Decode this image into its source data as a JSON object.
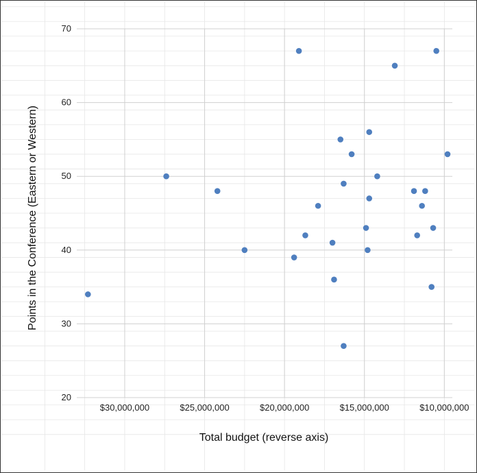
{
  "chart_data": {
    "type": "scatter",
    "title": "",
    "xlabel": "Total budget (reverse axis)",
    "ylabel": "Points in the Conference (Eastern or Western)",
    "x_reversed": true,
    "xlim": [
      9500000,
      33000000
    ],
    "ylim": [
      20,
      70
    ],
    "x_ticks": [
      30000000,
      25000000,
      20000000,
      15000000,
      10000000
    ],
    "x_tick_labels": [
      "$30,000,000",
      "$25,000,000",
      "$20,000,000",
      "$15,000,000",
      "$10,000,000"
    ],
    "y_ticks": [
      20,
      30,
      40,
      50,
      60,
      70
    ],
    "y_tick_labels": [
      "20",
      "30",
      "40",
      "50",
      "60",
      "70"
    ],
    "grid": true,
    "marker_color": "#4f7fbf",
    "points": [
      {
        "x": 32300000,
        "y": 34
      },
      {
        "x": 27400000,
        "y": 50
      },
      {
        "x": 24200000,
        "y": 48
      },
      {
        "x": 22500000,
        "y": 40
      },
      {
        "x": 19400000,
        "y": 39
      },
      {
        "x": 19100000,
        "y": 67
      },
      {
        "x": 18700000,
        "y": 42
      },
      {
        "x": 17900000,
        "y": 46
      },
      {
        "x": 17000000,
        "y": 41
      },
      {
        "x": 16900000,
        "y": 36
      },
      {
        "x": 16500000,
        "y": 55
      },
      {
        "x": 16300000,
        "y": 49
      },
      {
        "x": 16300000,
        "y": 27
      },
      {
        "x": 15800000,
        "y": 53
      },
      {
        "x": 14900000,
        "y": 43
      },
      {
        "x": 14800000,
        "y": 40
      },
      {
        "x": 14700000,
        "y": 56
      },
      {
        "x": 14700000,
        "y": 47
      },
      {
        "x": 14200000,
        "y": 50
      },
      {
        "x": 13100000,
        "y": 65
      },
      {
        "x": 11900000,
        "y": 48
      },
      {
        "x": 11700000,
        "y": 42
      },
      {
        "x": 11400000,
        "y": 46
      },
      {
        "x": 11200000,
        "y": 48
      },
      {
        "x": 10800000,
        "y": 35
      },
      {
        "x": 10700000,
        "y": 43
      },
      {
        "x": 10500000,
        "y": 67
      },
      {
        "x": 9800000,
        "y": 53
      }
    ]
  }
}
